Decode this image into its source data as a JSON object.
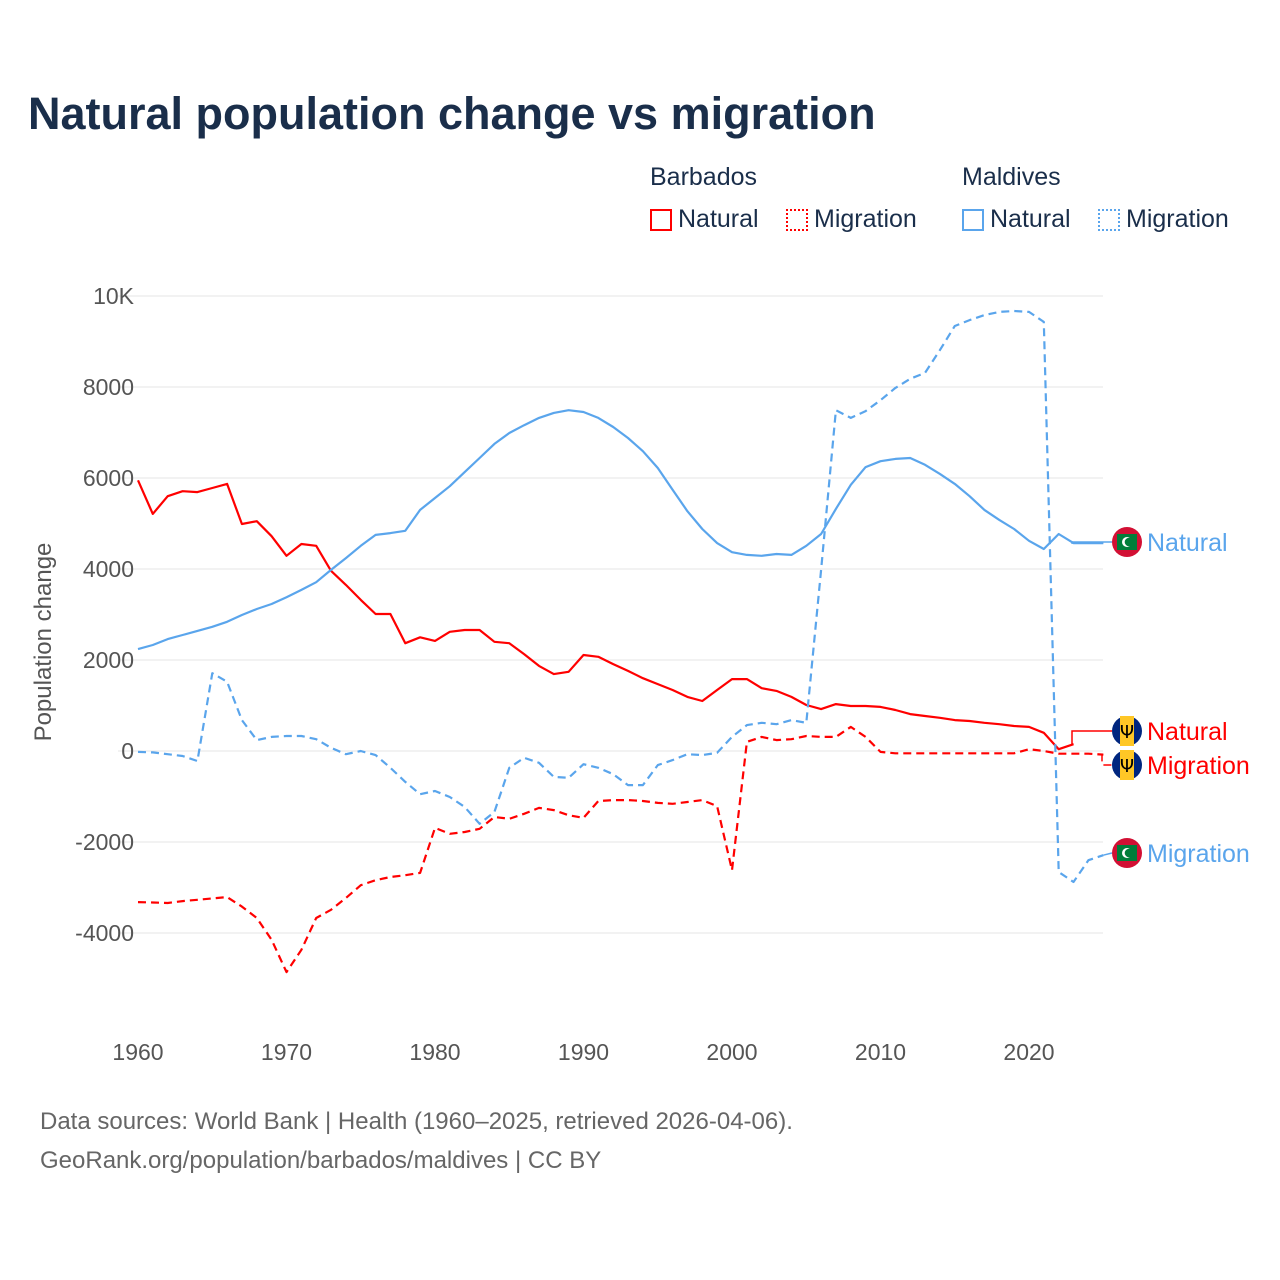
{
  "title": "Natural population change vs migration",
  "legend": {
    "groups": [
      {
        "name": "Barbados",
        "items": [
          "Natural",
          "Migration"
        ]
      },
      {
        "name": "Maldives",
        "items": [
          "Natural",
          "Migration"
        ]
      }
    ]
  },
  "footer": {
    "line1": "Data sources: World Bank | Health (1960–2025, retrieved 2026-04-06).",
    "line2": "GeoRank.org/population/barbados/maldives | CC BY"
  },
  "colors": {
    "barbados": "#ff0000",
    "maldives": "#5aa5ec"
  },
  "chart_data": {
    "type": "line",
    "title": "Natural population change vs migration",
    "xlabel": "",
    "ylabel": "Population change",
    "xlim": [
      1960,
      2025
    ],
    "ylim": [
      -5500,
      10000
    ],
    "xticks": [
      1960,
      1970,
      1980,
      1990,
      2000,
      2010,
      2020
    ],
    "xtick_labels": [
      "1960",
      "1970",
      "1980",
      "1990",
      "2000",
      "2010",
      "2020"
    ],
    "yticks": [
      -4000,
      -2000,
      0,
      2000,
      4000,
      6000,
      8000,
      10000
    ],
    "ytick_labels": [
      "-4000",
      "-2000",
      "0",
      "2000",
      "4000",
      "6000",
      "8000",
      "10K"
    ],
    "grid": true,
    "legend_position": "top-right",
    "series": [
      {
        "name": "Barbados Natural",
        "label": "Natural",
        "country": "barbados",
        "dash": false,
        "start": 1960,
        "values": [
          5950,
          5210,
          5600,
          5710,
          5690,
          5780,
          5870,
          4990,
          5050,
          4720,
          4290,
          4550,
          4510,
          3960,
          3650,
          3320,
          3010,
          3010,
          2370,
          2500,
          2420,
          2620,
          2660,
          2660,
          2400,
          2370,
          2130,
          1870,
          1690,
          1740,
          2110,
          2070,
          1910,
          1760,
          1600,
          1470,
          1340,
          1190,
          1100,
          1340,
          1580,
          1580,
          1380,
          1320,
          1190,
          1010,
          920,
          1030,
          990,
          990,
          970,
          900,
          810,
          770,
          730,
          680,
          660,
          620,
          590,
          550,
          530,
          400,
          40,
          150
        ]
      },
      {
        "name": "Barbados Migration",
        "label": "Migration",
        "country": "barbados",
        "dash": true,
        "start": 1960,
        "values": [
          -3320,
          -3330,
          -3340,
          -3300,
          -3270,
          -3240,
          -3210,
          -3420,
          -3670,
          -4150,
          -4860,
          -4370,
          -3670,
          -3490,
          -3230,
          -2950,
          -2840,
          -2770,
          -2730,
          -2680,
          -1690,
          -1820,
          -1780,
          -1710,
          -1450,
          -1490,
          -1380,
          -1250,
          -1300,
          -1410,
          -1470,
          -1100,
          -1080,
          -1080,
          -1100,
          -1140,
          -1160,
          -1120,
          -1080,
          -1210,
          -2620,
          200,
          310,
          240,
          260,
          330,
          310,
          310,
          530,
          310,
          -20,
          -50,
          -50,
          -50,
          -50,
          -50,
          -50,
          -50,
          -50,
          -50,
          40,
          0,
          -60,
          -60,
          -60,
          -80
        ]
      },
      {
        "name": "Maldives Natural",
        "label": "Natural",
        "country": "maldives",
        "dash": false,
        "start": 1960,
        "values": [
          2240,
          2330,
          2460,
          2550,
          2640,
          2730,
          2840,
          2990,
          3120,
          3230,
          3380,
          3540,
          3710,
          3980,
          4240,
          4510,
          4750,
          4790,
          4840,
          5300,
          5560,
          5820,
          6130,
          6440,
          6750,
          6990,
          7160,
          7320,
          7430,
          7490,
          7450,
          7320,
          7120,
          6880,
          6590,
          6220,
          5740,
          5270,
          4880,
          4570,
          4370,
          4310,
          4290,
          4330,
          4310,
          4510,
          4770,
          5320,
          5850,
          6240,
          6370,
          6420,
          6440,
          6290,
          6090,
          5870,
          5600,
          5300,
          5080,
          4880,
          4620,
          4440,
          4770,
          4570,
          4570,
          4570
        ]
      },
      {
        "name": "Maldives Migration",
        "label": "Migration",
        "country": "maldives",
        "dash": true,
        "start": 1960,
        "values": [
          -20,
          -30,
          -70,
          -110,
          -220,
          1710,
          1520,
          680,
          240,
          310,
          330,
          330,
          260,
          70,
          -70,
          0,
          -90,
          -370,
          -680,
          -950,
          -880,
          -1010,
          -1230,
          -1600,
          -1340,
          -370,
          -150,
          -260,
          -570,
          -590,
          -290,
          -370,
          -510,
          -750,
          -750,
          -310,
          -200,
          -70,
          -90,
          -40,
          310,
          570,
          620,
          590,
          680,
          620,
          3980,
          7490,
          7320,
          7470,
          7710,
          7980,
          8180,
          8310,
          8810,
          9340,
          9470,
          9580,
          9650,
          9670,
          9650,
          9430,
          -2660,
          -2880,
          -2400,
          -2290
        ]
      }
    ]
  }
}
